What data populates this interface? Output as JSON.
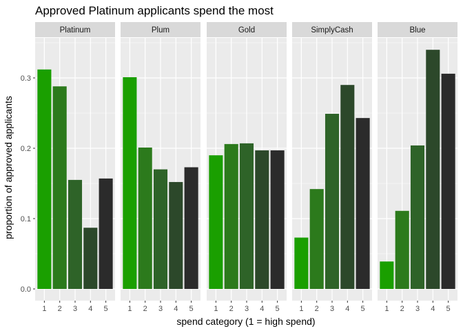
{
  "chart_data": {
    "type": "bar",
    "title": "Approved Platinum applicants spend the most",
    "xlabel": "spend category (1 = high spend)",
    "ylabel": "proportion of approved applicants",
    "categories": [
      "1",
      "2",
      "3",
      "4",
      "5"
    ],
    "ylim": [
      0,
      0.355
    ],
    "yticks": [
      0.0,
      0.1,
      0.2,
      0.3
    ],
    "ytick_labels": [
      "0.0",
      "0.1",
      "0.2",
      "0.3"
    ],
    "grid": true,
    "legend": "none",
    "bar_colors": [
      "#1a9f00",
      "#2c7a1c",
      "#2e6328",
      "#2c482a",
      "#2b2b2b"
    ],
    "panel_background": "#ebebeb",
    "strip_background": "#d9d9d9",
    "facets": [
      {
        "name": "Platinum",
        "values": [
          0.312,
          0.288,
          0.155,
          0.087,
          0.157
        ]
      },
      {
        "name": "Plum",
        "values": [
          0.301,
          0.201,
          0.17,
          0.152,
          0.173
        ]
      },
      {
        "name": "Gold",
        "values": [
          0.19,
          0.206,
          0.207,
          0.197,
          0.197
        ]
      },
      {
        "name": "SimplyCash",
        "values": [
          0.073,
          0.142,
          0.249,
          0.29,
          0.243
        ]
      },
      {
        "name": "Blue",
        "values": [
          0.039,
          0.111,
          0.204,
          0.34,
          0.306
        ]
      }
    ]
  }
}
